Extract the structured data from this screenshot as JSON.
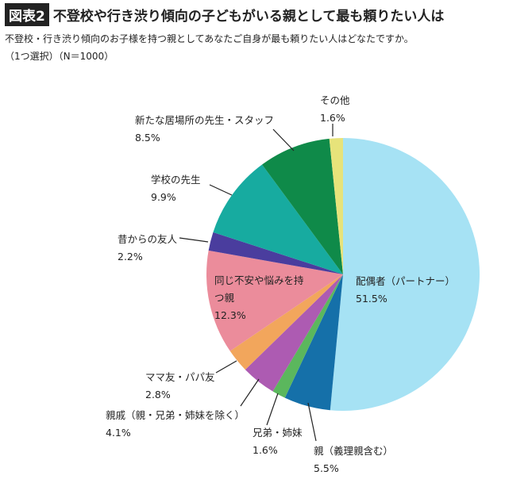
{
  "chart_data": {
    "type": "pie",
    "figure_label": "図表2",
    "title": "不登校や行き渋り傾向の子どもがいる親として最も頼りたい人は",
    "subtitle": "不登校・行き渋り傾向のお子様を持つ親としてあなたご自身が最も頼りたい人はどなたですか。",
    "note": "（1つ選択）（N＝1000）",
    "categories": [
      "配偶者（パートナー）",
      "親（義理親含む）",
      "兄弟・姉妹",
      "親戚（親・兄弟・姉妹を除く）",
      "ママ友・パパ友",
      "同じ不安や悩みを持つ親",
      "昔からの友人",
      "学校の先生",
      "新たな居場所の先生・スタッフ",
      "その他"
    ],
    "values": [
      51.5,
      5.5,
      1.6,
      4.1,
      2.8,
      12.3,
      2.2,
      9.9,
      8.5,
      1.6
    ],
    "value_labels": [
      "51.5%",
      "5.5%",
      "1.6%",
      "4.1%",
      "2.8%",
      "12.3%",
      "2.2%",
      "9.9%",
      "8.5%",
      "1.6%"
    ],
    "colors": [
      "#a6e2f4",
      "#1570a9",
      "#5bb75d",
      "#ad5bb2",
      "#f2a65c",
      "#eb8c9b",
      "#4a3d9e",
      "#17aba0",
      "#0f8a49",
      "#e7e37a"
    ]
  }
}
